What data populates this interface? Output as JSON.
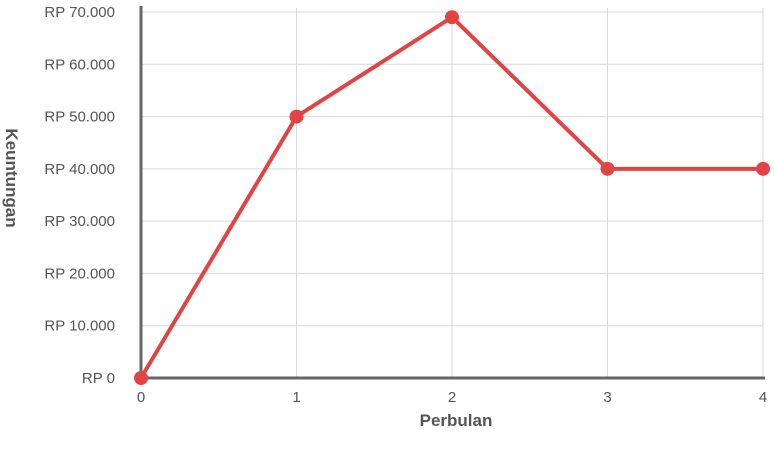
{
  "chart_data": {
    "type": "line",
    "title": "",
    "xlabel": "Perbulan",
    "ylabel": "Keuntungan",
    "x": [
      0,
      1,
      2,
      3,
      4
    ],
    "x_tick_labels": [
      "0",
      "1",
      "2",
      "3",
      "4"
    ],
    "y_tick_values": [
      0,
      10000,
      20000,
      30000,
      40000,
      50000,
      60000,
      70000
    ],
    "y_tick_labels": [
      "RP 0",
      "RP 10.000",
      "RP 20.000",
      "RP 30.000",
      "RP 40.000",
      "RP 50.000",
      "RP 60.000",
      "RP 70.000"
    ],
    "xlim": [
      0,
      4
    ],
    "ylim": [
      0,
      70000
    ],
    "grid": true,
    "legend": "none",
    "series": [
      {
        "values": [
          0,
          50000,
          69000,
          40000,
          40000
        ],
        "color": "#e04444"
      }
    ],
    "colors": {
      "grid": "#d9d9d9",
      "axis": "#666666",
      "text": "#555555"
    }
  }
}
